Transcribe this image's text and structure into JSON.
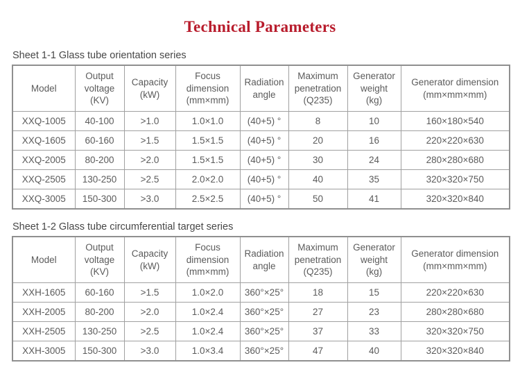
{
  "page": {
    "title": "Technical Parameters",
    "title_color": "#b81c2c",
    "text_color": "#5b5b5b",
    "border_color": "#a0a0a0"
  },
  "table1": {
    "caption": "Sheet 1-1 Glass tube orientation series",
    "headers": [
      "Model",
      "Output\nvoltage\n(KV)",
      "Capacity\n(kW)",
      "Focus\ndimension\n(mm×mm)",
      "Radiation\nangle",
      "Maximum\npenetration\n(Q235)",
      "Generator\nweight\n(kg)",
      "Generator dimension\n(mm×mm×mm)"
    ],
    "rows": [
      [
        "XXQ-1005",
        "40-100",
        ">1.0",
        "1.0×1.0",
        "(40+5) °",
        "8",
        "10",
        "160×180×540"
      ],
      [
        "XXQ-1605",
        "60-160",
        ">1.5",
        "1.5×1.5",
        "(40+5) °",
        "20",
        "16",
        "220×220×630"
      ],
      [
        "XXQ-2005",
        "80-200",
        ">2.0",
        "1.5×1.5",
        "(40+5) °",
        "30",
        "24",
        "280×280×680"
      ],
      [
        "XXQ-2505",
        "130-250",
        ">2.5",
        "2.0×2.0",
        "(40+5) °",
        "40",
        "35",
        "320×320×750"
      ],
      [
        "XXQ-3005",
        "150-300",
        ">3.0",
        "2.5×2.5",
        "(40+5) °",
        "50",
        "41",
        "320×320×840"
      ]
    ]
  },
  "table2": {
    "caption": "Sheet 1-2 Glass tube circumferential target series",
    "headers": [
      "Model",
      "Output\nvoltage\n(KV)",
      "Capacity\n(kW)",
      "Focus\ndimension\n(mm×mm)",
      "Radiation\nangle",
      "Maximum\npenetration\n(Q235)",
      "Generator\nweight\n(kg)",
      "Generator dimension\n(mm×mm×mm)"
    ],
    "rows": [
      [
        "XXH-1605",
        "60-160",
        ">1.5",
        "1.0×2.0",
        "360°×25°",
        "18",
        "15",
        "220×220×630"
      ],
      [
        "XXH-2005",
        "80-200",
        ">2.0",
        "1.0×2.4",
        "360°×25°",
        "27",
        "23",
        "280×280×680"
      ],
      [
        "XXH-2505",
        "130-250",
        ">2.5",
        "1.0×2.4",
        "360°×25°",
        "37",
        "33",
        "320×320×750"
      ],
      [
        "XXH-3005",
        "150-300",
        ">3.0",
        "1.0×3.4",
        "360°×25°",
        "47",
        "40",
        "320×320×840"
      ]
    ]
  }
}
